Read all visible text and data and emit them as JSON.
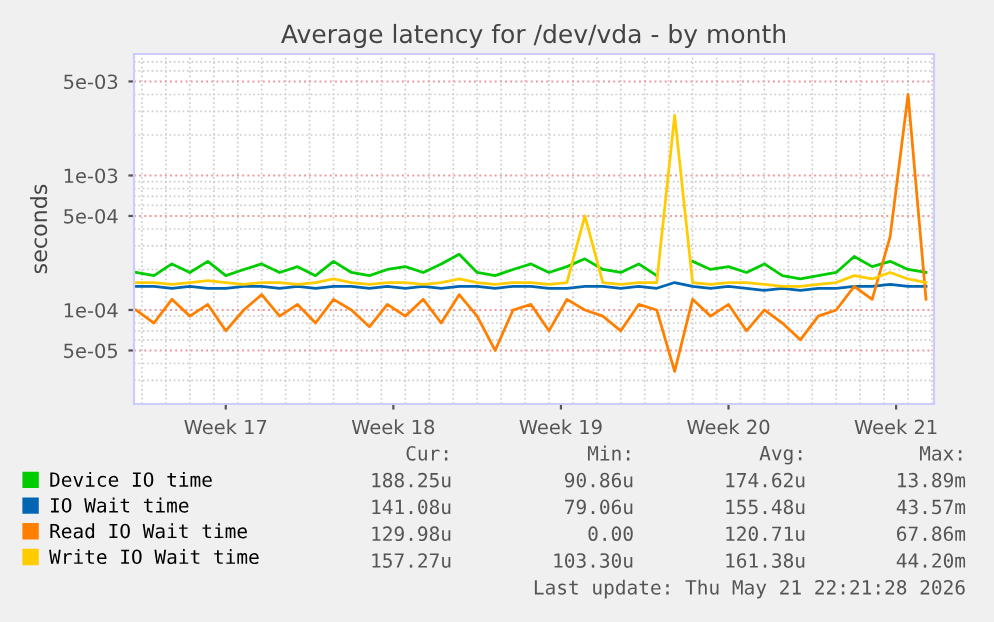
{
  "chart_data": {
    "type": "line",
    "title": "Average latency for /dev/vda - by month",
    "ylabel": "seconds",
    "log": "y",
    "x": [
      "2026-04-19T18:00",
      "2026-04-20T12:00",
      "2026-04-21T06:00",
      "2026-04-22T00:00",
      "2026-04-22T18:00",
      "2026-04-23T12:00",
      "2026-04-24T06:00",
      "2026-04-25T00:00",
      "2026-04-25T18:00",
      "2026-04-26T12:00",
      "2026-04-27T06:00",
      "2026-04-28T00:00",
      "2026-04-28T18:00",
      "2026-04-29T12:00",
      "2026-04-30T06:00",
      "2026-05-01T00:00",
      "2026-05-01T18:00",
      "2026-05-02T12:00",
      "2026-05-03T06:00",
      "2026-05-04T00:00",
      "2026-05-04T18:00",
      "2026-05-05T12:00",
      "2026-05-06T06:00",
      "2026-05-07T00:00",
      "2026-05-07T18:00",
      "2026-05-08T12:00",
      "2026-05-09T06:00",
      "2026-05-10T00:00",
      "2026-05-10T18:00",
      "2026-05-11T12:00",
      "2026-05-12T06:00",
      "2026-05-13T00:00",
      "2026-05-13T18:00",
      "2026-05-14T12:00",
      "2026-05-15T06:00",
      "2026-05-16T00:00",
      "2026-05-16T18:00",
      "2026-05-17T12:00",
      "2026-05-18T06:00",
      "2026-05-19T00:00",
      "2026-05-19T18:00",
      "2026-05-20T12:00",
      "2026-05-21T06:00",
      "2026-05-22T00:00",
      "2026-05-22T18:00"
    ],
    "series": [
      {
        "name": "Device IO time",
        "color": "#00cc00",
        "values": [
          0.00019,
          0.00018,
          0.00022,
          0.00019,
          0.00023,
          0.00018,
          0.0002,
          0.00022,
          0.00019,
          0.00021,
          0.00018,
          0.00023,
          0.00019,
          0.00018,
          0.0002,
          0.00021,
          0.00019,
          0.00022,
          0.00026,
          0.00019,
          0.00018,
          0.0002,
          0.00022,
          0.00019,
          0.00021,
          0.00024,
          0.0002,
          0.00019,
          0.00022,
          0.00018,
          null,
          0.00023,
          0.0002,
          0.00021,
          0.00019,
          0.00022,
          0.00018,
          0.00017,
          0.00018,
          0.00019,
          0.00025,
          0.00021,
          0.00023,
          0.0002,
          0.00019
        ]
      },
      {
        "name": "IO Wait time",
        "color": "#0066b3",
        "values": [
          0.00015,
          0.00015,
          0.000145,
          0.00015,
          0.000145,
          0.000145,
          0.00015,
          0.00015,
          0.000145,
          0.00015,
          0.000145,
          0.00015,
          0.00015,
          0.000145,
          0.00015,
          0.000145,
          0.00015,
          0.000145,
          0.00015,
          0.00015,
          0.000145,
          0.00015,
          0.00015,
          0.000145,
          0.000145,
          0.00015,
          0.00015,
          0.000145,
          0.00015,
          0.000145,
          0.00016,
          0.00015,
          0.000145,
          0.00015,
          0.000145,
          0.00014,
          0.000145,
          0.00014,
          0.000145,
          0.000145,
          0.00015,
          0.00015,
          0.000155,
          0.00015,
          0.00015
        ]
      },
      {
        "name": "Read IO Wait time",
        "color": "#ff8000",
        "values": [
          0.0001,
          8e-05,
          0.00012,
          9e-05,
          0.00011,
          7e-05,
          0.0001,
          0.00013,
          9e-05,
          0.00011,
          8e-05,
          0.00012,
          0.0001,
          7.5e-05,
          0.00011,
          9e-05,
          0.00012,
          8e-05,
          0.00013,
          9e-05,
          5e-05,
          0.0001,
          0.00011,
          7e-05,
          0.00012,
          0.0001,
          9e-05,
          7e-05,
          0.00011,
          0.0001,
          3.5e-05,
          0.00012,
          9e-05,
          0.00011,
          7e-05,
          0.0001,
          8e-05,
          6e-05,
          9e-05,
          0.0001,
          0.00015,
          0.00012,
          0.00035,
          0.004,
          0.00012
        ]
      },
      {
        "name": "Write IO Wait time",
        "color": "#ffcc00",
        "values": [
          0.00016,
          0.00016,
          0.000155,
          0.00016,
          0.000165,
          0.00016,
          0.000155,
          0.00016,
          0.00016,
          0.000155,
          0.00016,
          0.00017,
          0.00016,
          0.000155,
          0.00016,
          0.00016,
          0.000155,
          0.00016,
          0.00017,
          0.00016,
          0.000155,
          0.00016,
          0.00016,
          0.000155,
          0.00016,
          0.0005,
          0.00016,
          0.000155,
          0.00016,
          0.00016,
          0.0028,
          0.00016,
          0.000155,
          0.00016,
          0.00016,
          0.000155,
          0.00015,
          0.00015,
          0.000155,
          0.00016,
          0.00018,
          0.00017,
          0.00019,
          0.00017,
          0.00016
        ]
      }
    ],
    "xlim": [
      "2026-04-19T16:00",
      "2026-05-23T02:00"
    ],
    "xticks": [
      {
        "value": "2026-04-23T12:00",
        "label": "Week 17"
      },
      {
        "value": "2026-04-30T12:00",
        "label": "Week 18"
      },
      {
        "value": "2026-05-07T12:00",
        "label": "Week 19"
      },
      {
        "value": "2026-05-14T12:00",
        "label": "Week 20"
      },
      {
        "value": "2026-05-21T12:00",
        "label": "Week 21"
      }
    ],
    "ylim": [
      2e-05,
      0.008
    ],
    "yticks": [
      {
        "value": 5e-05,
        "label": "5e-05"
      },
      {
        "value": 0.0001,
        "label": "1e-04"
      },
      {
        "value": 0.0005,
        "label": "5e-04"
      },
      {
        "value": 0.001,
        "label": "1e-03"
      },
      {
        "value": 0.005,
        "label": "5e-03"
      }
    ],
    "grid": true,
    "legend": "bottom",
    "annotations": [
      "Cur:",
      "Min:",
      "Avg:",
      "Max:",
      "188.25u",
      "90.86u",
      "174.62u",
      "13.89m",
      "141.08u",
      "79.06u",
      "155.48u",
      "43.57m",
      "129.98u",
      "0.00",
      "120.71u",
      "67.86m",
      "157.27u",
      "103.30u",
      "161.38u",
      "44.20m",
      "Last update: Thu May 21 22:21:28 2026"
    ]
  }
}
